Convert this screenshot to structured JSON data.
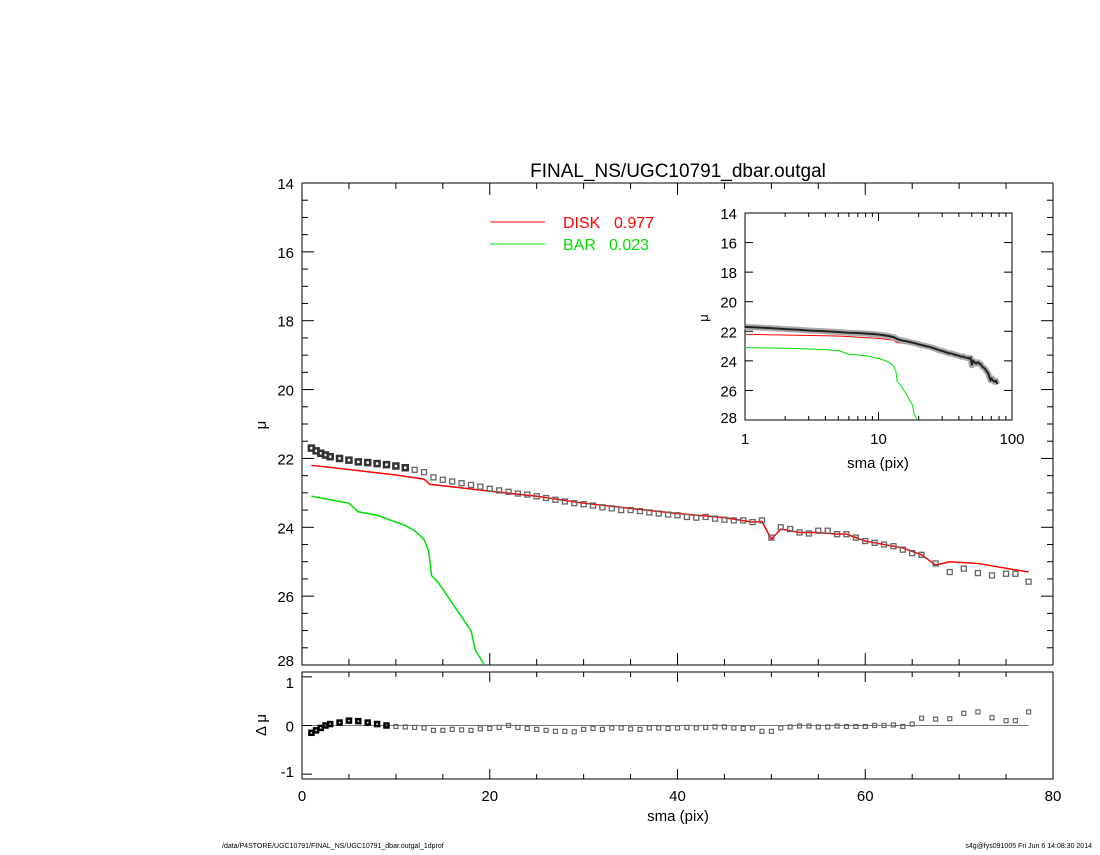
{
  "chart_data": [
    {
      "type": "line",
      "title": "FINAL_NS/UGC10791_dbar.outgal",
      "xlabel": "",
      "ylabel": "μ",
      "xlim": [
        0,
        80
      ],
      "ylim": [
        14,
        28
      ],
      "y_inverted": true,
      "yticks": [
        "14",
        "16",
        "18",
        "20",
        "22",
        "24",
        "26",
        "28"
      ],
      "legend_placement": "top-center",
      "colors": {
        "observed": "#555555",
        "disk": "#ff0000",
        "bar": "#00e000"
      },
      "x": [
        1,
        1.5,
        2,
        2.5,
        3,
        4,
        5,
        6,
        7,
        8,
        9,
        10,
        11,
        12,
        13,
        14,
        15,
        16,
        17,
        18,
        19,
        20,
        21,
        22,
        23,
        24,
        25,
        26,
        27,
        28,
        29,
        30,
        31,
        32,
        33,
        34,
        35,
        36,
        37,
        38,
        39,
        40,
        41,
        42,
        43,
        44,
        45,
        46,
        47,
        48,
        49,
        50,
        51,
        52,
        53,
        54,
        55,
        56,
        57,
        58,
        59,
        60,
        61,
        62,
        63,
        64,
        65,
        66,
        67.5,
        69,
        70.5,
        72,
        73.5,
        75,
        76,
        77.4
      ],
      "observed": [
        21.7,
        21.78,
        21.85,
        21.9,
        21.95,
        22.0,
        22.05,
        22.1,
        22.12,
        22.15,
        22.18,
        22.22,
        22.27,
        22.33,
        22.4,
        22.55,
        22.62,
        22.67,
        22.72,
        22.77,
        22.82,
        22.88,
        22.93,
        22.97,
        23.02,
        23.05,
        23.1,
        23.15,
        23.2,
        23.25,
        23.3,
        23.33,
        23.37,
        23.42,
        23.45,
        23.5,
        23.5,
        23.53,
        23.57,
        23.6,
        23.63,
        23.65,
        23.7,
        23.72,
        23.7,
        23.75,
        23.78,
        23.8,
        23.8,
        23.85,
        23.8,
        24.3,
        24.0,
        24.05,
        24.15,
        24.18,
        24.1,
        24.1,
        24.2,
        24.2,
        24.3,
        24.4,
        24.45,
        24.5,
        24.55,
        24.65,
        24.75,
        24.8,
        25.05,
        25.3,
        25.2,
        25.33,
        25.4,
        25.35,
        25.35,
        25.58
      ],
      "series": [
        {
          "name": "DISK",
          "weight": "0.977",
          "x": [
            1,
            5,
            10,
            13,
            13.6,
            20,
            25,
            30,
            35,
            40,
            45,
            48,
            49,
            50,
            51,
            53,
            55,
            57,
            58,
            59,
            60,
            61,
            62,
            63,
            64,
            65,
            66,
            67.5,
            69,
            72,
            77.4
          ],
          "values": [
            22.2,
            22.32,
            22.48,
            22.6,
            22.75,
            22.95,
            23.1,
            23.3,
            23.45,
            23.6,
            23.72,
            23.85,
            23.83,
            24.35,
            24.05,
            24.15,
            24.15,
            24.2,
            24.2,
            24.3,
            24.4,
            24.45,
            24.5,
            24.55,
            24.6,
            24.7,
            24.8,
            25.1,
            25.0,
            25.05,
            25.3
          ]
        },
        {
          "name": "BAR",
          "weight": "0.023",
          "x": [
            1,
            2,
            3,
            4,
            5,
            6,
            7,
            8,
            9,
            10,
            11,
            12,
            13,
            13.5,
            13.8,
            14.5,
            15,
            16,
            17,
            18,
            18.5,
            19,
            19.6
          ],
          "values": [
            23.1,
            23.15,
            23.2,
            23.25,
            23.3,
            23.55,
            23.6,
            23.65,
            23.75,
            23.85,
            23.95,
            24.1,
            24.35,
            24.7,
            25.4,
            25.6,
            25.8,
            26.2,
            26.6,
            27.0,
            27.6,
            27.8,
            28.1
          ]
        }
      ]
    },
    {
      "type": "scatter",
      "xlabel": "sma (pix)",
      "ylabel": "Δ μ",
      "xlim": [
        0,
        80
      ],
      "ylim": [
        -1.1,
        1.1
      ],
      "xticks": [
        "0",
        "20",
        "40",
        "60",
        "80"
      ],
      "yticks": [
        "1",
        "0",
        "-1"
      ],
      "x": [
        1,
        1.5,
        2,
        2.5,
        3,
        4,
        5,
        6,
        7,
        8,
        9,
        10,
        11,
        12,
        13,
        14,
        15,
        16,
        17,
        18,
        19,
        20,
        21,
        22,
        23,
        24,
        25,
        26,
        27,
        28,
        29,
        30,
        31,
        32,
        33,
        34,
        35,
        36,
        37,
        38,
        39,
        40,
        41,
        42,
        43,
        44,
        45,
        46,
        47,
        48,
        49,
        50,
        51,
        52,
        53,
        54,
        55,
        56,
        57,
        58,
        59,
        60,
        61,
        62,
        63,
        64,
        65,
        66,
        67.5,
        69,
        70.5,
        72,
        73.5,
        75,
        76,
        77.4
      ],
      "values": [
        -0.15,
        -0.1,
        -0.05,
        0.0,
        0.03,
        0.06,
        0.1,
        0.09,
        0.06,
        0.03,
        0.0,
        -0.02,
        -0.03,
        -0.04,
        -0.05,
        -0.1,
        -0.1,
        -0.08,
        -0.09,
        -0.1,
        -0.07,
        -0.06,
        -0.04,
        0.0,
        -0.04,
        -0.06,
        -0.08,
        -0.1,
        -0.12,
        -0.12,
        -0.13,
        -0.08,
        -0.06,
        -0.08,
        -0.05,
        -0.05,
        -0.07,
        -0.08,
        -0.05,
        -0.05,
        -0.06,
        -0.05,
        -0.04,
        -0.05,
        -0.04,
        -0.03,
        -0.03,
        -0.05,
        -0.06,
        -0.05,
        -0.12,
        -0.12,
        -0.05,
        -0.03,
        -0.01,
        -0.01,
        -0.03,
        -0.03,
        -0.01,
        -0.02,
        -0.02,
        -0.02,
        0.0,
        0.0,
        0.01,
        -0.02,
        0.03,
        0.15,
        0.13,
        0.14,
        0.25,
        0.28,
        0.16,
        0.1,
        0.1,
        0.28
      ]
    },
    {
      "type": "line",
      "inset": true,
      "xlabel": "sma (pix)",
      "ylabel": "μ",
      "x_scale": "log",
      "xlim": [
        1,
        100
      ],
      "ylim": [
        14,
        28
      ],
      "y_inverted": true,
      "xticks": [
        "1",
        "10",
        "100"
      ],
      "yticks": [
        "14",
        "16",
        "18",
        "20",
        "22",
        "24",
        "26",
        "28"
      ]
    }
  ],
  "footer": {
    "path": "/data/P4STORE/UGC10791/FINAL_NS/UGC10791_dbar.outgal_1dprof",
    "stamp": "s4g@fys091005  Fri Jun  6 14:08:30 2014"
  }
}
